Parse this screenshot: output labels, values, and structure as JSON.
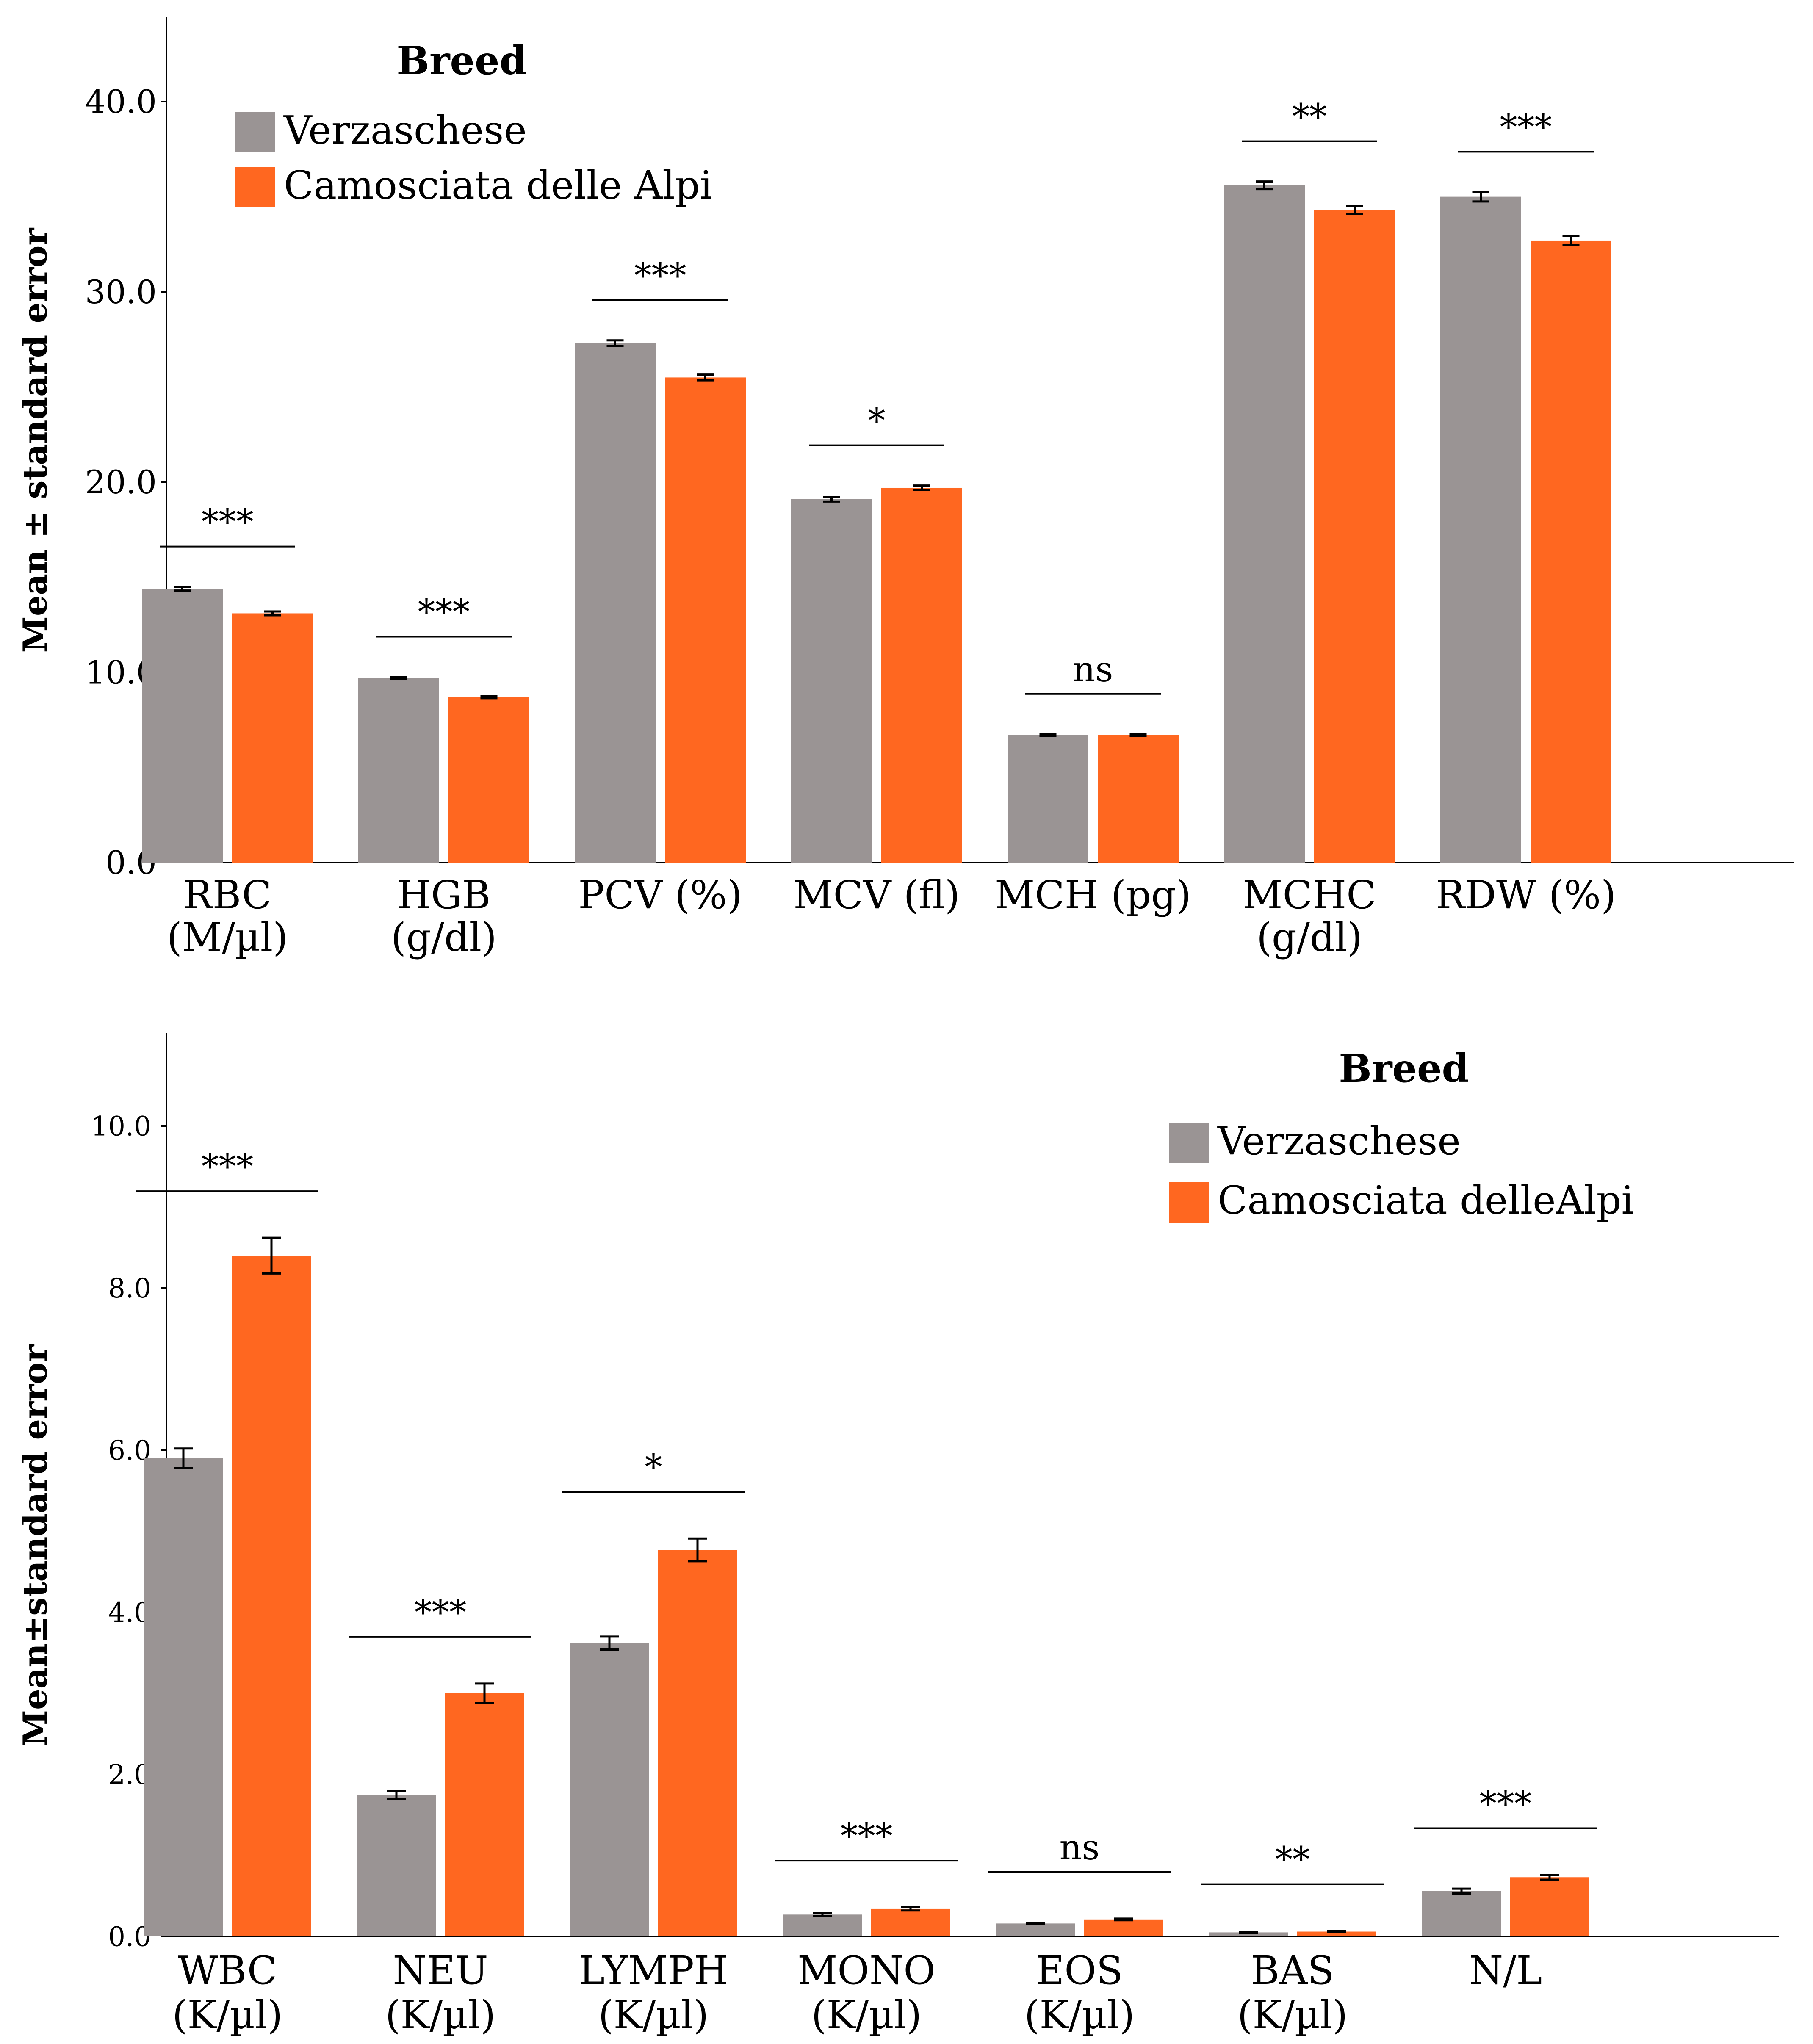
{
  "chart_data": [
    {
      "type": "bar",
      "ylabel": "Mean ± standard error",
      "ylim": [
        0,
        40
      ],
      "yticks": [
        "0.0",
        "10.0",
        "20.0",
        "30.0",
        "40.0"
      ],
      "categories": [
        [
          "RBC",
          "(M/µl)"
        ],
        [
          "HGB",
          "(g/dl)"
        ],
        [
          "PCV (%)"
        ],
        [
          "MCV (fl)"
        ],
        [
          "MCH (pg)"
        ],
        [
          "MCHC",
          "(g/dl)"
        ],
        [
          "RDW (%)"
        ]
      ],
      "legend_title": "Breed",
      "legend_position": "top-left",
      "series": [
        {
          "name": "Verzaschese",
          "color": "#9a9494",
          "values": [
            14.4,
            9.7,
            27.3,
            19.1,
            6.7,
            35.6,
            35.0
          ],
          "errors": [
            0.1,
            0.06,
            0.15,
            0.12,
            0.05,
            0.2,
            0.25
          ]
        },
        {
          "name": "Camosciata delle Alpi",
          "color": "#ff6720",
          "values": [
            13.1,
            8.7,
            25.5,
            19.7,
            6.7,
            34.3,
            32.7
          ],
          "errors": [
            0.1,
            0.06,
            0.15,
            0.12,
            0.05,
            0.2,
            0.25
          ]
        }
      ],
      "significance": [
        "***",
        "***",
        "***",
        "*",
        "ns",
        "**",
        "***"
      ]
    },
    {
      "type": "bar",
      "ylabel": "Mean±standard error",
      "ylim": [
        0,
        10
      ],
      "yticks": [
        "0.0",
        "2.0",
        "4.0",
        "6.0",
        "8.0",
        "10.0"
      ],
      "categories": [
        [
          "WBC",
          "(K/µl)"
        ],
        [
          "NEU",
          "(K/µl)"
        ],
        [
          "LYMPH",
          "(K/µl)"
        ],
        [
          "MONO",
          "(K/µl)"
        ],
        [
          "EOS",
          "(K/µl)"
        ],
        [
          "BAS",
          "(K/µl)"
        ],
        [
          "N/L"
        ]
      ],
      "legend_title": "Breed",
      "legend_position": "top-right",
      "series": [
        {
          "name": "Verzaschese",
          "color": "#9a9494",
          "values": [
            5.9,
            1.75,
            3.62,
            0.27,
            0.16,
            0.05,
            0.56
          ],
          "errors": [
            0.12,
            0.05,
            0.08,
            0.02,
            0.01,
            0.01,
            0.03
          ]
        },
        {
          "name": "Camosciata delleAlpi",
          "color": "#ff6720",
          "values": [
            8.4,
            3.0,
            4.77,
            0.34,
            0.21,
            0.06,
            0.73
          ],
          "errors": [
            0.22,
            0.12,
            0.14,
            0.02,
            0.01,
            0.01,
            0.03
          ]
        }
      ],
      "significance": [
        "***",
        "***",
        "*",
        "***",
        "ns",
        "**",
        "***"
      ]
    }
  ]
}
